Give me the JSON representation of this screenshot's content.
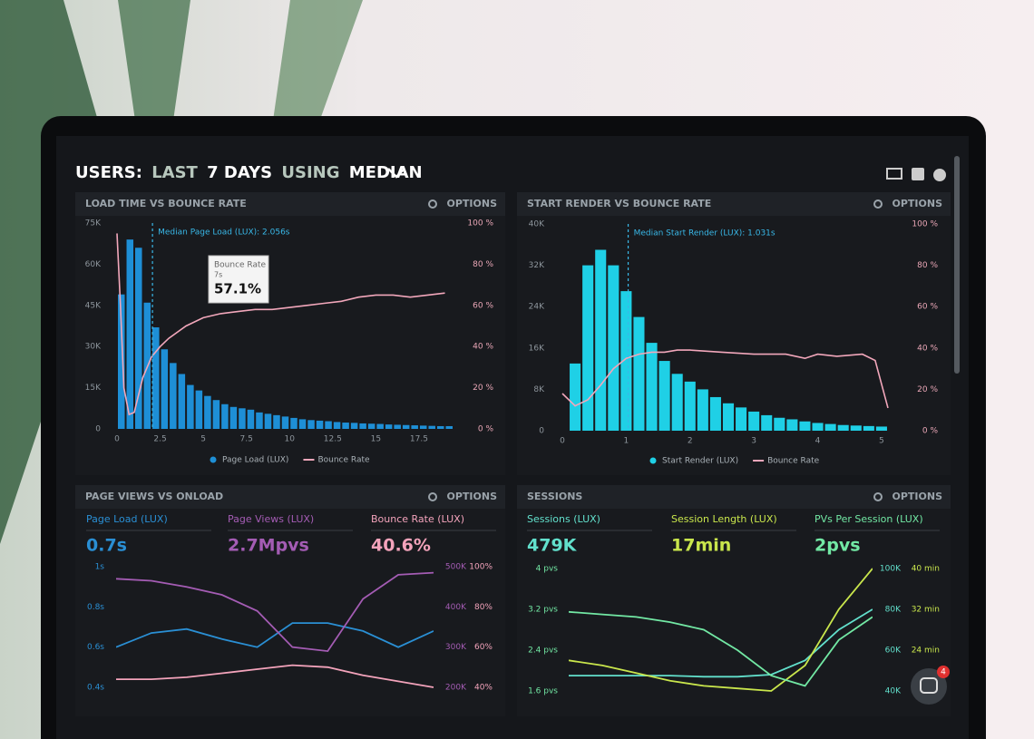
{
  "header": {
    "parts": [
      "USERS:",
      "LAST",
      "7 DAYS",
      "USING",
      "MEDIAN"
    ]
  },
  "chat_badge": "4",
  "chart_data": [
    {
      "type": "histogram",
      "title": "LOAD TIME VS BOUNCE RATE",
      "options": "OPTIONS",
      "bins": [
        0,
        0.5,
        1,
        1.5,
        2,
        2.5,
        3,
        3.5,
        4,
        4.5,
        5,
        5.5,
        6,
        6.5,
        7,
        7.5,
        8,
        8.5,
        9,
        9.5,
        10,
        10.5,
        11,
        11.5,
        12,
        12.5,
        13,
        13.5,
        14,
        14.5,
        15,
        15.5,
        16,
        16.5,
        17,
        17.5,
        18,
        18.5,
        19,
        19.5
      ],
      "series": [
        {
          "name": "Page Load (LUX)",
          "color": "#1e8fd6",
          "values": [
            49000,
            69000,
            66000,
            46000,
            37000,
            29000,
            24000,
            20000,
            16000,
            14000,
            12000,
            10500,
            9000,
            8000,
            7500,
            7000,
            6000,
            5500,
            5000,
            4500,
            4000,
            3500,
            3200,
            3000,
            2800,
            2500,
            2300,
            2200,
            2000,
            1900,
            1800,
            1600,
            1500,
            1400,
            1300,
            1200,
            1100,
            1000,
            1000
          ]
        },
        {
          "name": "Bounce Rate",
          "color": "#f2a7bb",
          "axis": "y2",
          "x": [
            0,
            0.2,
            0.4,
            0.7,
            1,
            1.5,
            2,
            2.5,
            3,
            4,
            5,
            6,
            7,
            8,
            9,
            10,
            11,
            12,
            13,
            14,
            15,
            16,
            17,
            18,
            19
          ],
          "values": [
            95,
            60,
            20,
            7,
            8,
            25,
            35,
            40,
            44,
            50,
            54,
            56,
            57,
            58,
            58,
            59,
            60,
            61,
            62,
            64,
            65,
            65,
            64,
            65,
            66
          ]
        }
      ],
      "xlim": [
        0,
        19.5
      ],
      "xticks": [
        0,
        2.5,
        5,
        7.5,
        10,
        12.5,
        15,
        17.5
      ],
      "ylim": [
        0,
        75000
      ],
      "yticks": [
        {
          "value": 0,
          "label": "0"
        },
        {
          "value": 15000,
          "label": "15K"
        },
        {
          "value": 30000,
          "label": "30K"
        },
        {
          "value": 45000,
          "label": "45K"
        },
        {
          "value": 60000,
          "label": "60K"
        },
        {
          "value": 75000,
          "label": "75K"
        }
      ],
      "y2lim": [
        0,
        100
      ],
      "y2ticks": [
        {
          "value": 0,
          "label": "0 %"
        },
        {
          "value": 20,
          "label": "20 %"
        },
        {
          "value": 40,
          "label": "40 %"
        },
        {
          "value": 60,
          "label": "60 %"
        },
        {
          "value": 80,
          "label": "80 %"
        },
        {
          "value": 100,
          "label": "100 %"
        }
      ],
      "annotation": {
        "text": "Median Page Load (LUX): 2.056s",
        "x": 2.056
      },
      "tooltip": {
        "title": "Bounce Rate",
        "subtitle": "7s",
        "value": "57.1%"
      }
    },
    {
      "type": "histogram",
      "title": "START RENDER VS BOUNCE RATE",
      "options": "OPTIONS",
      "bins": [
        0.1,
        0.3,
        0.5,
        0.7,
        0.9,
        1.1,
        1.3,
        1.5,
        1.7,
        1.9,
        2.1,
        2.3,
        2.5,
        2.7,
        2.9,
        3.1,
        3.3,
        3.5,
        3.7,
        3.9,
        4.1,
        4.3,
        4.5,
        4.7,
        4.9,
        5.1
      ],
      "series": [
        {
          "name": "Start Render (LUX)",
          "color": "#1fd0e6",
          "values": [
            13000,
            32000,
            35000,
            32000,
            27000,
            22000,
            17000,
            13500,
            11000,
            9500,
            8000,
            6500,
            5300,
            4500,
            3700,
            3000,
            2500,
            2200,
            1800,
            1500,
            1300,
            1100,
            1000,
            900,
            800
          ]
        },
        {
          "name": "Bounce Rate",
          "color": "#f2a7bb",
          "axis": "y2",
          "x": [
            0,
            0.2,
            0.4,
            0.6,
            0.8,
            1,
            1.2,
            1.4,
            1.6,
            1.8,
            2,
            2.5,
            3,
            3.5,
            3.8,
            4,
            4.3,
            4.7,
            4.9,
            5.1
          ],
          "values": [
            18,
            12,
            15,
            22,
            30,
            35,
            37,
            38,
            38,
            39,
            39,
            38,
            37,
            37,
            35,
            37,
            36,
            37,
            34,
            11
          ]
        }
      ],
      "xlim": [
        0,
        5.2
      ],
      "xticks": [
        0,
        1,
        2,
        3,
        4,
        5
      ],
      "ylim": [
        0,
        40000
      ],
      "yticks": [
        {
          "value": 0,
          "label": "0"
        },
        {
          "value": 8000,
          "label": "8K"
        },
        {
          "value": 16000,
          "label": "16K"
        },
        {
          "value": 24000,
          "label": "24K"
        },
        {
          "value": 32000,
          "label": "32K"
        },
        {
          "value": 40000,
          "label": "40K"
        }
      ],
      "y2lim": [
        0,
        100
      ],
      "y2ticks": [
        {
          "value": 0,
          "label": "0 %"
        },
        {
          "value": 20,
          "label": "20 %"
        },
        {
          "value": 40,
          "label": "40 %"
        },
        {
          "value": 60,
          "label": "60 %"
        },
        {
          "value": 80,
          "label": "80 %"
        },
        {
          "value": 100,
          "label": "100 %"
        }
      ],
      "annotation": {
        "text": "Median Start Render (LUX): 1.031s",
        "x": 1.031
      }
    },
    {
      "type": "line",
      "title": "PAGE VIEWS VS ONLOAD",
      "options": "OPTIONS",
      "series": [
        {
          "name": "Page Load (LUX)",
          "summary": "0.7s",
          "color": "#2a8fd4",
          "axis": "y",
          "values": [
            0.6,
            0.67,
            0.69,
            0.64,
            0.6,
            0.72,
            0.72,
            0.68,
            0.6,
            0.68
          ]
        },
        {
          "name": "Page Views (LUX)",
          "summary": "2.7Mpvs",
          "color": "#a45cb4",
          "axis": "y2",
          "values": [
            470000,
            465000,
            450000,
            430000,
            390000,
            300000,
            290000,
            420000,
            480000,
            485000
          ]
        },
        {
          "name": "Bounce Rate (LUX)",
          "summary": "40.6%",
          "color": "#f3a3bb",
          "axis": "y3",
          "values": [
            44,
            44,
            45,
            47,
            49,
            51,
            50,
            46,
            43,
            40
          ]
        }
      ],
      "ylim": [
        0.4,
        1
      ],
      "yticks": [
        {
          "value": 0.4,
          "label": "0.4s"
        },
        {
          "value": 0.6,
          "label": "0.6s"
        },
        {
          "value": 0.8,
          "label": "0.8s"
        },
        {
          "value": 1,
          "label": "1s"
        }
      ],
      "y2lim": [
        200000,
        500000
      ],
      "y2ticks": [
        {
          "value": 200000,
          "label": "200K"
        },
        {
          "value": 300000,
          "label": "300K"
        },
        {
          "value": 400000,
          "label": "400K"
        },
        {
          "value": 500000,
          "label": "500K"
        }
      ],
      "y3lim": [
        40,
        100
      ],
      "y3ticks": [
        {
          "value": 40,
          "label": "40%"
        },
        {
          "value": 60,
          "label": "60%"
        },
        {
          "value": 80,
          "label": "80%"
        },
        {
          "value": 100,
          "label": "100%"
        }
      ]
    },
    {
      "type": "line",
      "title": "SESSIONS",
      "options": "OPTIONS",
      "series": [
        {
          "name": "Sessions (LUX)",
          "summary": "479K",
          "color": "#62e0cc",
          "axis": "y2",
          "values": [
            47500,
            47500,
            47500,
            47500,
            47000,
            47000,
            48000,
            55000,
            70000,
            80000
          ]
        },
        {
          "name": "Session Length (LUX)",
          "summary": "17min",
          "color": "#c9e64c",
          "axis": "y3",
          "values": [
            22,
            21,
            19.5,
            18,
            17,
            16.5,
            16,
            21,
            32,
            40
          ]
        },
        {
          "name": "PVs Per Session (LUX)",
          "summary": "2pvs",
          "color": "#72e8a4",
          "axis": "y",
          "values": [
            3.15,
            3.1,
            3.05,
            2.95,
            2.8,
            2.4,
            1.9,
            1.7,
            2.6,
            3.05
          ]
        }
      ],
      "ylim": [
        1.6,
        4
      ],
      "yticks": [
        {
          "value": 1.6,
          "label": "1.6 pvs"
        },
        {
          "value": 2.4,
          "label": "2.4 pvs"
        },
        {
          "value": 3.2,
          "label": "3.2 pvs"
        },
        {
          "value": 4,
          "label": "4 pvs"
        }
      ],
      "y2lim": [
        40000,
        100000
      ],
      "y2ticks": [
        {
          "value": 40000,
          "label": "40K"
        },
        {
          "value": 60000,
          "label": "60K"
        },
        {
          "value": 80000,
          "label": "80K"
        },
        {
          "value": 100000,
          "label": "100K"
        }
      ],
      "y3lim": [
        16,
        40
      ],
      "y3ticks": [
        {
          "value": 24,
          "label": "24 min"
        },
        {
          "value": 32,
          "label": "32 min"
        },
        {
          "value": 40,
          "label": "40 min"
        }
      ]
    }
  ]
}
